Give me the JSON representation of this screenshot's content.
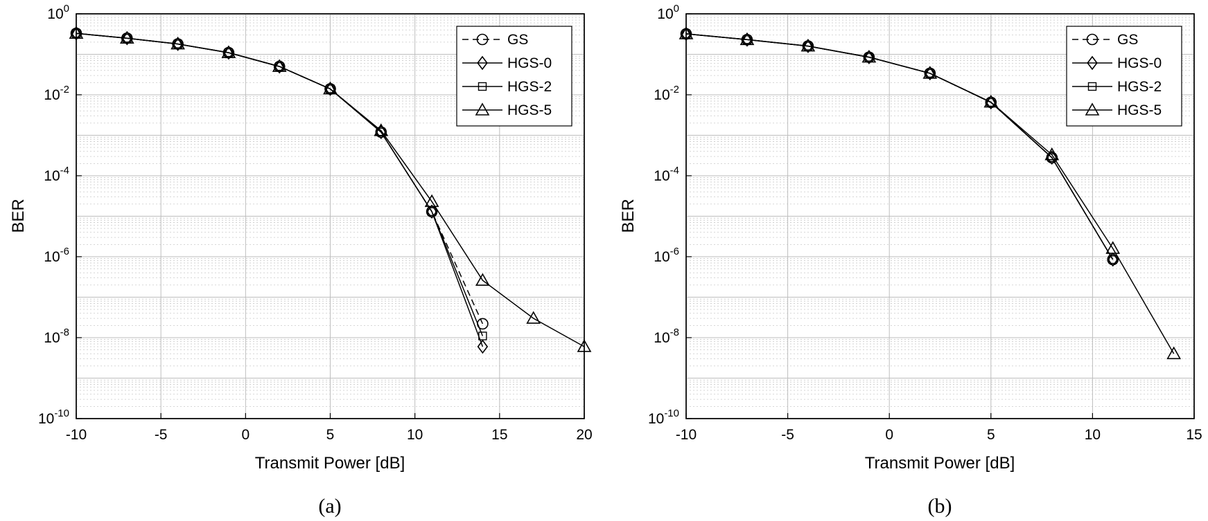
{
  "chart_data": [
    {
      "type": "line",
      "caption": "(a)",
      "xlabel": "Transmit Power [dB]",
      "ylabel": "BER",
      "yscale": "log",
      "xlim": [
        -10,
        20
      ],
      "ylim_exp": [
        -10,
        0
      ],
      "xticks": [
        -10,
        -5,
        0,
        5,
        10,
        15,
        20
      ],
      "grid": true,
      "legend_position": "top-right",
      "series": [
        {
          "name": "GS",
          "marker": "circle",
          "dash": true,
          "x": [
            -10,
            -7,
            -4,
            -1,
            2,
            5,
            8,
            11,
            14
          ],
          "y": [
            0.33,
            0.25,
            0.18,
            0.11,
            0.05,
            0.014,
            0.0012,
            1.3e-05,
            2.2e-08
          ]
        },
        {
          "name": "HGS-0",
          "marker": "diamond",
          "dash": false,
          "x": [
            -10,
            -7,
            -4,
            -1,
            2,
            5,
            8,
            11,
            14
          ],
          "y": [
            0.33,
            0.25,
            0.18,
            0.11,
            0.05,
            0.014,
            0.0012,
            1.3e-05,
            6e-09
          ]
        },
        {
          "name": "HGS-2",
          "marker": "square",
          "dash": false,
          "x": [
            -10,
            -7,
            -4,
            -1,
            2,
            5,
            8,
            11,
            14
          ],
          "y": [
            0.33,
            0.25,
            0.18,
            0.11,
            0.05,
            0.014,
            0.0012,
            1.3e-05,
            1.1e-08
          ]
        },
        {
          "name": "HGS-5",
          "marker": "triangle",
          "dash": false,
          "x": [
            -10,
            -7,
            -4,
            -1,
            2,
            5,
            8,
            11,
            14,
            17,
            20
          ],
          "y": [
            0.33,
            0.25,
            0.18,
            0.11,
            0.05,
            0.014,
            0.0013,
            2.3e-05,
            2.6e-07,
            3e-08,
            6e-09
          ]
        }
      ]
    },
    {
      "type": "line",
      "caption": "(b)",
      "xlabel": "Transmit Power [dB]",
      "ylabel": "BER",
      "yscale": "log",
      "xlim": [
        -10,
        15
      ],
      "ylim_exp": [
        -10,
        0
      ],
      "xticks": [
        -10,
        -5,
        0,
        5,
        10,
        15
      ],
      "grid": true,
      "legend_position": "top-right",
      "series": [
        {
          "name": "GS",
          "marker": "circle",
          "dash": true,
          "x": [
            -10,
            -7,
            -4,
            -1,
            2,
            5,
            8,
            11
          ],
          "y": [
            0.32,
            0.23,
            0.16,
            0.085,
            0.034,
            0.0065,
            0.00028,
            8.5e-07
          ]
        },
        {
          "name": "HGS-0",
          "marker": "diamond",
          "dash": false,
          "x": [
            -10,
            -7,
            -4,
            -1,
            2,
            5,
            8,
            11
          ],
          "y": [
            0.32,
            0.23,
            0.16,
            0.085,
            0.034,
            0.0065,
            0.00028,
            8.5e-07
          ]
        },
        {
          "name": "HGS-2",
          "marker": "square",
          "dash": false,
          "x": [
            -10,
            -7,
            -4,
            -1,
            2,
            5,
            8,
            11
          ],
          "y": [
            0.32,
            0.23,
            0.16,
            0.085,
            0.034,
            0.0065,
            0.00028,
            8.5e-07
          ]
        },
        {
          "name": "HGS-5",
          "marker": "triangle",
          "dash": false,
          "x": [
            -10,
            -7,
            -4,
            -1,
            2,
            5,
            8,
            11,
            14
          ],
          "y": [
            0.32,
            0.23,
            0.16,
            0.085,
            0.034,
            0.0066,
            0.00033,
            1.6e-06,
            4e-09
          ]
        }
      ]
    }
  ]
}
